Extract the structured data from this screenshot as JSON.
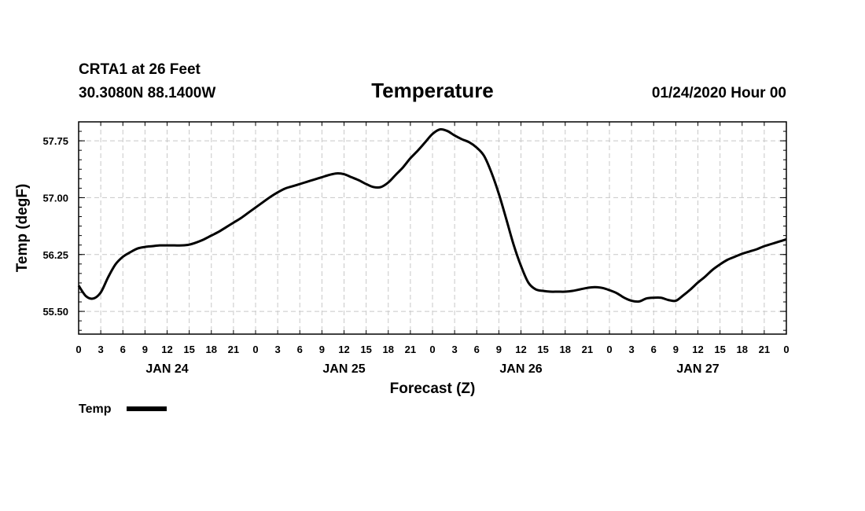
{
  "header": {
    "station": "CRTA1 at 26 Feet",
    "location": "30.3080N 88.1400W",
    "title": "Temperature",
    "run": "01/24/2020 Hour 00"
  },
  "chart_data": {
    "type": "line",
    "title": "Temperature",
    "xlabel": "Forecast (Z)",
    "ylabel": "Temp (degF)",
    "x_unit": "forecast hour from 01/24/2020 00Z",
    "xlim": [
      0,
      96
    ],
    "ylim": [
      55.2,
      58.0
    ],
    "yticks": [
      55.5,
      56.25,
      57.0,
      57.75
    ],
    "ytick_labels": [
      "55.50",
      "56.25",
      "57.00",
      "57.75"
    ],
    "xticks": [
      0,
      3,
      6,
      9,
      12,
      15,
      18,
      21,
      24,
      27,
      30,
      33,
      36,
      39,
      42,
      45,
      48,
      51,
      54,
      57,
      60,
      63,
      66,
      69,
      72,
      75,
      78,
      81,
      84,
      87,
      90,
      93,
      96
    ],
    "xtick_labels": [
      "0",
      "3",
      "6",
      "9",
      "12",
      "15",
      "18",
      "21",
      "0",
      "3",
      "6",
      "9",
      "12",
      "15",
      "18",
      "21",
      "0",
      "3",
      "6",
      "9",
      "12",
      "15",
      "18",
      "21",
      "0",
      "3",
      "6",
      "9",
      "12",
      "15",
      "18",
      "21",
      "0"
    ],
    "date_labels": [
      {
        "x": 12,
        "label": "JAN 24"
      },
      {
        "x": 36,
        "label": "JAN 25"
      },
      {
        "x": 60,
        "label": "JAN 26"
      },
      {
        "x": 84,
        "label": "JAN 27"
      }
    ],
    "grid": true,
    "legend": [
      {
        "name": "Temp",
        "placement": "bottom-left"
      }
    ],
    "series": [
      {
        "name": "Temp",
        "color": "#000000",
        "x": [
          0,
          1,
          2,
          3,
          4,
          5,
          6,
          7,
          8,
          9,
          10,
          11,
          12,
          13,
          14,
          15,
          16,
          17,
          18,
          19,
          20,
          21,
          22,
          23,
          24,
          25,
          26,
          27,
          28,
          29,
          30,
          31,
          32,
          33,
          34,
          35,
          36,
          37,
          38,
          39,
          40,
          41,
          42,
          43,
          44,
          45,
          46,
          47,
          48,
          49,
          50,
          51,
          52,
          53,
          54,
          55,
          56,
          57,
          58,
          59,
          60,
          61,
          62,
          63,
          64,
          65,
          66,
          67,
          68,
          69,
          70,
          71,
          72,
          73,
          74,
          75,
          76,
          77,
          78,
          79,
          80,
          81,
          82,
          83,
          84,
          85,
          86,
          87,
          88,
          89,
          90,
          91,
          92,
          93,
          94,
          95,
          96
        ],
        "values": [
          55.84,
          55.7,
          55.67,
          55.75,
          55.95,
          56.12,
          56.22,
          56.28,
          56.33,
          56.35,
          56.36,
          56.37,
          56.37,
          56.37,
          56.37,
          56.38,
          56.41,
          56.45,
          56.5,
          56.55,
          56.61,
          56.67,
          56.73,
          56.8,
          56.87,
          56.94,
          57.01,
          57.07,
          57.12,
          57.15,
          57.18,
          57.21,
          57.24,
          57.27,
          57.3,
          57.32,
          57.31,
          57.27,
          57.23,
          57.18,
          57.14,
          57.14,
          57.2,
          57.3,
          57.4,
          57.52,
          57.62,
          57.73,
          57.84,
          57.9,
          57.88,
          57.82,
          57.77,
          57.73,
          57.66,
          57.55,
          57.33,
          57.05,
          56.72,
          56.38,
          56.1,
          55.88,
          55.79,
          55.77,
          55.76,
          55.76,
          55.76,
          55.77,
          55.79,
          55.81,
          55.82,
          55.81,
          55.78,
          55.74,
          55.68,
          55.64,
          55.63,
          55.67,
          55.68,
          55.68,
          55.65,
          55.64,
          55.71,
          55.79,
          55.88,
          55.96,
          56.05,
          56.12,
          56.18,
          56.22,
          56.26,
          56.29,
          56.32,
          56.36,
          56.39,
          56.42,
          56.45
        ]
      }
    ]
  }
}
